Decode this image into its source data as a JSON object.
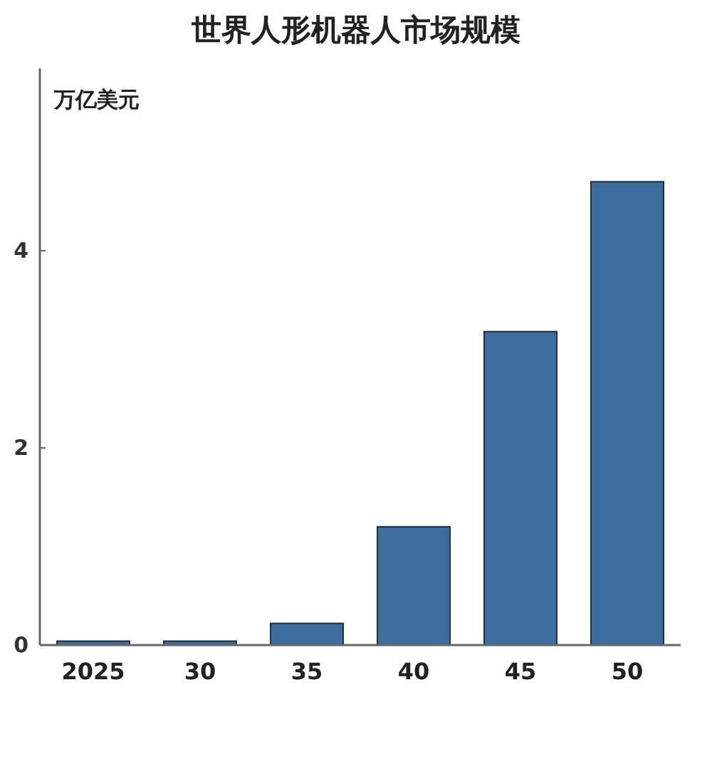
{
  "chart_data": {
    "type": "bar",
    "title": "世界人形机器人市场规模",
    "ylabel": "万亿美元",
    "categories": [
      "2025",
      "30",
      "35",
      "40",
      "45",
      "50"
    ],
    "values": [
      0.04,
      0.04,
      0.22,
      1.2,
      3.18,
      4.7
    ],
    "color": "#3b6e9e",
    "ylim": [
      0,
      5.85
    ],
    "yticks": [
      0,
      2,
      4
    ],
    "grid": false
  }
}
